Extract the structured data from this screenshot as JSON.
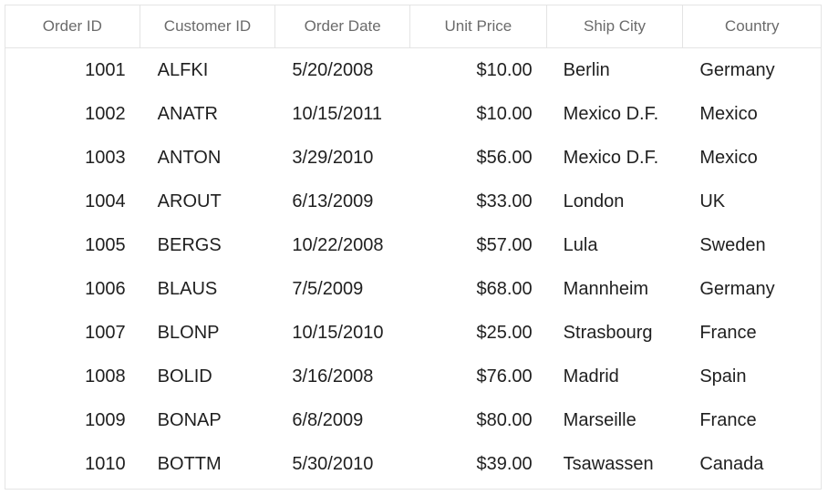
{
  "grid": {
    "columns": [
      "Order ID",
      "Customer ID",
      "Order Date",
      "Unit Price",
      "Ship City",
      "Country"
    ],
    "rows": [
      [
        "1001",
        "ALFKI",
        "5/20/2008",
        "$10.00",
        "Berlin",
        "Germany"
      ],
      [
        "1002",
        "ANATR",
        "10/15/2011",
        "$10.00",
        "Mexico D.F.",
        "Mexico"
      ],
      [
        "1003",
        "ANTON",
        "3/29/2010",
        "$56.00",
        "Mexico D.F.",
        "Mexico"
      ],
      [
        "1004",
        "AROUT",
        "6/13/2009",
        "$33.00",
        "London",
        "UK"
      ],
      [
        "1005",
        "BERGS",
        "10/22/2008",
        "$57.00",
        "Lula",
        "Sweden"
      ],
      [
        "1006",
        "BLAUS",
        "7/5/2009",
        "$68.00",
        "Mannheim",
        "Germany"
      ],
      [
        "1007",
        "BLONP",
        "10/15/2010",
        "$25.00",
        "Strasbourg",
        "France"
      ],
      [
        "1008",
        "BOLID",
        "3/16/2008",
        "$76.00",
        "Madrid",
        "Spain"
      ],
      [
        "1009",
        "BONAP",
        "6/8/2009",
        "$80.00",
        "Marseille",
        "France"
      ],
      [
        "1010",
        "BOTTM",
        "5/30/2010",
        "$39.00",
        "Tsawassen",
        "Canada"
      ]
    ]
  },
  "colors": {
    "border": "#e4e4e4",
    "header_text": "#6b6b6b",
    "cell_text": "#1f1f1f"
  }
}
